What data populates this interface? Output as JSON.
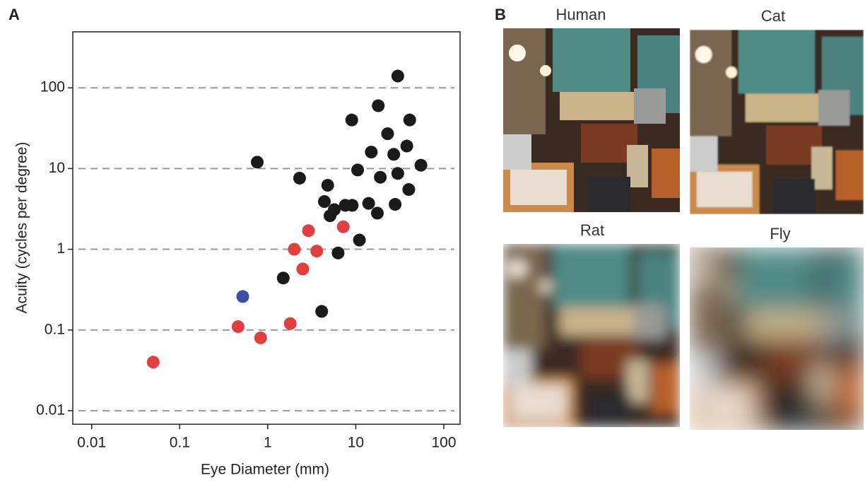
{
  "panel_labels": [
    "A",
    "B"
  ],
  "image_titles": [
    "Human",
    "Cat",
    "Rat",
    "Fly"
  ],
  "chart_data": {
    "type": "scatter",
    "xlabel": "Eye Diameter (mm)",
    "ylabel": "Acuity (cycles per degree)",
    "log_x": true,
    "log_y": true,
    "grid": true,
    "xlim": [
      0.0061,
      153
    ],
    "ylim": [
      0.0068,
      494
    ],
    "xticks": [
      0.01,
      0.1,
      1,
      10,
      100
    ],
    "yticks": [
      0.01,
      0.1,
      1,
      10,
      100
    ],
    "series": [
      {
        "color": "#1a1a1a",
        "x": [
          30,
          18,
          9,
          41,
          23,
          38,
          15,
          27,
          55,
          0.76,
          2.3,
          4.8,
          10.5,
          19,
          30,
          7.6,
          14,
          4.4,
          40,
          5.1,
          9.1,
          17.6,
          28,
          5.7,
          11,
          6.3,
          1.5,
          4.1
        ],
        "values": [
          140,
          60,
          40,
          40,
          27,
          19,
          16,
          15,
          11,
          12,
          7.6,
          6.2,
          9.6,
          7.8,
          8.7,
          3.5,
          3.7,
          3.9,
          5.5,
          2.6,
          3.5,
          2.8,
          3.6,
          3.1,
          1.3,
          0.9,
          0.44,
          0.17
        ]
      },
      {
        "color": "#e0403f",
        "x": [
          2.9,
          7.2,
          2.0,
          3.6,
          2.5,
          0.46,
          0.83,
          1.8,
          0.05
        ],
        "values": [
          1.7,
          1.9,
          1.0,
          0.95,
          0.57,
          0.11,
          0.08,
          0.12,
          0.04
        ]
      },
      {
        "color": "#3a4fa8",
        "x": [
          0.52
        ],
        "values": [
          0.26
        ]
      }
    ]
  }
}
